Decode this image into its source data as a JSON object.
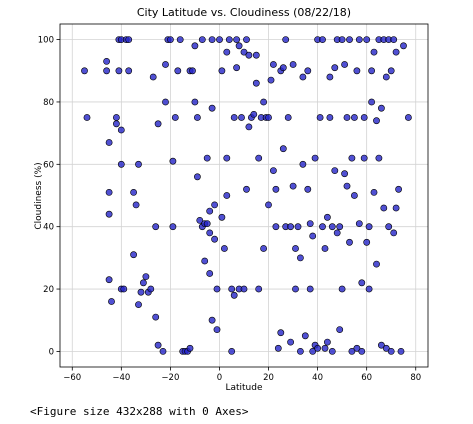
{
  "figure": {
    "caption": "<Figure size 432x288 with 0 Axes>",
    "colors": {
      "marker_fill": "#2424c8",
      "marker_edge": "#000000",
      "grid": "#d3d3d3",
      "frame": "#000000"
    }
  },
  "chart_data": {
    "type": "scatter",
    "title": "City Latitude vs. Cloudiness (08/22/18)",
    "xlabel": "Latitude",
    "ylabel": "Cloudiness (%)",
    "xlim": [
      -65,
      85
    ],
    "ylim": [
      -5,
      105
    ],
    "xticks": [
      -60,
      -40,
      -20,
      0,
      20,
      40,
      60,
      80
    ],
    "yticks": [
      0,
      20,
      40,
      60,
      80,
      100
    ],
    "grid": true,
    "series": [
      {
        "name": "Cities",
        "points": [
          [
            -55,
            90
          ],
          [
            -54,
            75
          ],
          [
            -46,
            93
          ],
          [
            -46,
            90
          ],
          [
            -45,
            67
          ],
          [
            -45,
            51
          ],
          [
            -45,
            44
          ],
          [
            -45,
            23
          ],
          [
            -44,
            16
          ],
          [
            -42,
            75
          ],
          [
            -42,
            73
          ],
          [
            -41,
            100
          ],
          [
            -40,
            100
          ],
          [
            -41,
            90
          ],
          [
            -40,
            71
          ],
          [
            -40,
            60
          ],
          [
            -40,
            20
          ],
          [
            -39,
            20
          ],
          [
            -38,
            100
          ],
          [
            -37,
            100
          ],
          [
            -37,
            90
          ],
          [
            -35,
            31
          ],
          [
            -35,
            51
          ],
          [
            -34,
            47
          ],
          [
            -33,
            60
          ],
          [
            -33,
            15
          ],
          [
            -32,
            19
          ],
          [
            -31,
            22
          ],
          [
            -30,
            24
          ],
          [
            -29,
            19
          ],
          [
            -28,
            20
          ],
          [
            -27,
            88
          ],
          [
            -26,
            11
          ],
          [
            -26,
            40
          ],
          [
            -25,
            73
          ],
          [
            -25,
            2
          ],
          [
            -23,
            0
          ],
          [
            -22,
            80
          ],
          [
            -22,
            92
          ],
          [
            -21,
            100
          ],
          [
            -20,
            100
          ],
          [
            -19,
            61
          ],
          [
            -19,
            40
          ],
          [
            -18,
            75
          ],
          [
            -17,
            90
          ],
          [
            -16,
            100
          ],
          [
            -15,
            0
          ],
          [
            -14,
            0
          ],
          [
            -13,
            0
          ],
          [
            -12,
            1
          ],
          [
            -12,
            90
          ],
          [
            -11,
            90
          ],
          [
            -10,
            98
          ],
          [
            -10,
            80
          ],
          [
            -9,
            75
          ],
          [
            -9,
            56
          ],
          [
            -8,
            42
          ],
          [
            -7,
            100
          ],
          [
            -7,
            40
          ],
          [
            -6,
            41
          ],
          [
            -6,
            29
          ],
          [
            -5,
            62
          ],
          [
            -5,
            41
          ],
          [
            -4,
            45
          ],
          [
            -4,
            38
          ],
          [
            -4,
            25
          ],
          [
            -3,
            100
          ],
          [
            -3,
            78
          ],
          [
            -3,
            10
          ],
          [
            -2,
            47
          ],
          [
            -2,
            36
          ],
          [
            -1,
            20
          ],
          [
            -1,
            7
          ],
          [
            0,
            100
          ],
          [
            1,
            90
          ],
          [
            1,
            43
          ],
          [
            2,
            33
          ],
          [
            3,
            50
          ],
          [
            3,
            62
          ],
          [
            3,
            96
          ],
          [
            4,
            100
          ],
          [
            5,
            20
          ],
          [
            5,
            0
          ],
          [
            6,
            75
          ],
          [
            6,
            18
          ],
          [
            7,
            100
          ],
          [
            7,
            91
          ],
          [
            8,
            98
          ],
          [
            8,
            20
          ],
          [
            9,
            75
          ],
          [
            10,
            96
          ],
          [
            10,
            20
          ],
          [
            11,
            100
          ],
          [
            11,
            52
          ],
          [
            12,
            72
          ],
          [
            12,
            95
          ],
          [
            13,
            75
          ],
          [
            14,
            76
          ],
          [
            15,
            95
          ],
          [
            15,
            86
          ],
          [
            16,
            62
          ],
          [
            16,
            20
          ],
          [
            17,
            75
          ],
          [
            18,
            80
          ],
          [
            18,
            33
          ],
          [
            19,
            75
          ],
          [
            20,
            75
          ],
          [
            20,
            47
          ],
          [
            21,
            87
          ],
          [
            22,
            92
          ],
          [
            22,
            58
          ],
          [
            23,
            52
          ],
          [
            23,
            40
          ],
          [
            24,
            1
          ],
          [
            25,
            6
          ],
          [
            25,
            90
          ],
          [
            26,
            91
          ],
          [
            26,
            65
          ],
          [
            27,
            100
          ],
          [
            27,
            40
          ],
          [
            28,
            75
          ],
          [
            29,
            40
          ],
          [
            29,
            3
          ],
          [
            30,
            92
          ],
          [
            30,
            53
          ],
          [
            31,
            33
          ],
          [
            31,
            20
          ],
          [
            32,
            40
          ],
          [
            33,
            30
          ],
          [
            33,
            0
          ],
          [
            34,
            88
          ],
          [
            34,
            60
          ],
          [
            35,
            5
          ],
          [
            36,
            90
          ],
          [
            36,
            52
          ],
          [
            37,
            20
          ],
          [
            37,
            41
          ],
          [
            38,
            37
          ],
          [
            38,
            0
          ],
          [
            39,
            62
          ],
          [
            39,
            2
          ],
          [
            40,
            100
          ],
          [
            40,
            1
          ],
          [
            41,
            75
          ],
          [
            42,
            100
          ],
          [
            42,
            40
          ],
          [
            43,
            33
          ],
          [
            43,
            1
          ],
          [
            44,
            3
          ],
          [
            44,
            43
          ],
          [
            45,
            88
          ],
          [
            45,
            75
          ],
          [
            46,
            40
          ],
          [
            46,
            0
          ],
          [
            47,
            91
          ],
          [
            47,
            58
          ],
          [
            48,
            100
          ],
          [
            48,
            38
          ],
          [
            49,
            40
          ],
          [
            49,
            7
          ],
          [
            50,
            100
          ],
          [
            50,
            20
          ],
          [
            51,
            92
          ],
          [
            51,
            57
          ],
          [
            52,
            75
          ],
          [
            52,
            53
          ],
          [
            53,
            100
          ],
          [
            53,
            35
          ],
          [
            54,
            0
          ],
          [
            54,
            62
          ],
          [
            55,
            75
          ],
          [
            55,
            50
          ],
          [
            56,
            90
          ],
          [
            56,
            1
          ],
          [
            57,
            100
          ],
          [
            57,
            41
          ],
          [
            58,
            22
          ],
          [
            58,
            0
          ],
          [
            59,
            75
          ],
          [
            59,
            62
          ],
          [
            60,
            100
          ],
          [
            60,
            35
          ],
          [
            61,
            40
          ],
          [
            61,
            20
          ],
          [
            62,
            90
          ],
          [
            62,
            80
          ],
          [
            63,
            96
          ],
          [
            63,
            51
          ],
          [
            64,
            74
          ],
          [
            64,
            28
          ],
          [
            65,
            100
          ],
          [
            65,
            62
          ],
          [
            66,
            78
          ],
          [
            66,
            2
          ],
          [
            67,
            100
          ],
          [
            67,
            46
          ],
          [
            68,
            88
          ],
          [
            68,
            1
          ],
          [
            69,
            100
          ],
          [
            69,
            40
          ],
          [
            70,
            90
          ],
          [
            70,
            0
          ],
          [
            71,
            100
          ],
          [
            71,
            38
          ],
          [
            72,
            96
          ],
          [
            72,
            46
          ],
          [
            73,
            52
          ],
          [
            74,
            0
          ],
          [
            75,
            98
          ],
          [
            77,
            75
          ]
        ]
      }
    ]
  }
}
